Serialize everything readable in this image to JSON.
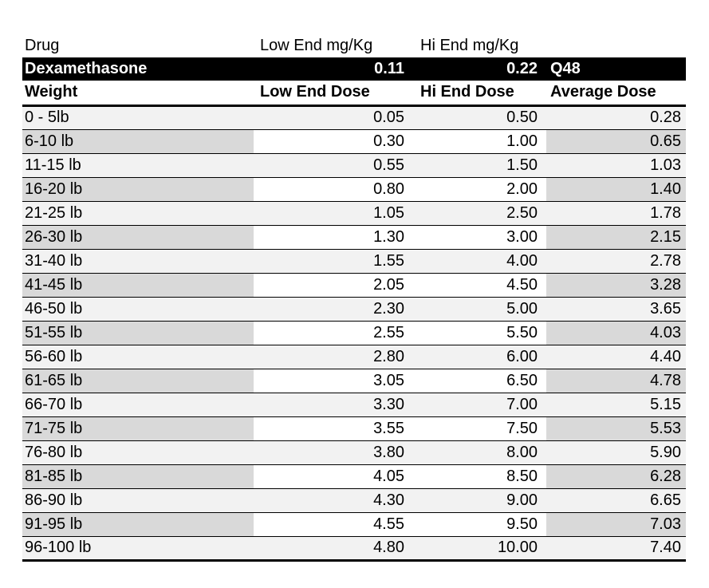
{
  "table": {
    "top_header": {
      "drug": "Drug",
      "low": "Low End mg/Kg",
      "hi": "Hi End mg/Kg"
    },
    "drug_row": {
      "name": "Dexamethasone",
      "low": "0.11",
      "hi": "0.22",
      "frequency": "Q48"
    },
    "dose_header": {
      "weight": "Weight",
      "low": "Low End Dose",
      "hi": "Hi End Dose",
      "avg": "Average Dose"
    },
    "rows": [
      {
        "weight": "0 - 5lb",
        "low": "0.05",
        "hi": "0.50",
        "avg": "0.28"
      },
      {
        "weight": "6-10 lb",
        "low": "0.30",
        "hi": "1.00",
        "avg": "0.65"
      },
      {
        "weight": "11-15 lb",
        "low": "0.55",
        "hi": "1.50",
        "avg": "1.03"
      },
      {
        "weight": "16-20 lb",
        "low": "0.80",
        "hi": "2.00",
        "avg": "1.40"
      },
      {
        "weight": "21-25 lb",
        "low": "1.05",
        "hi": "2.50",
        "avg": "1.78"
      },
      {
        "weight": "26-30 lb",
        "low": "1.30",
        "hi": "3.00",
        "avg": "2.15"
      },
      {
        "weight": "31-40 lb",
        "low": "1.55",
        "hi": "4.00",
        "avg": "2.78"
      },
      {
        "weight": "41-45 lb",
        "low": "2.05",
        "hi": "4.50",
        "avg": "3.28"
      },
      {
        "weight": "46-50 lb",
        "low": "2.30",
        "hi": "5.00",
        "avg": "3.65"
      },
      {
        "weight": "51-55 lb",
        "low": "2.55",
        "hi": "5.50",
        "avg": "4.03"
      },
      {
        "weight": "56-60 lb",
        "low": "2.80",
        "hi": "6.00",
        "avg": "4.40"
      },
      {
        "weight": "61-65 lb",
        "low": "3.05",
        "hi": "6.50",
        "avg": "4.78"
      },
      {
        "weight": "66-70 lb",
        "low": "3.30",
        "hi": "7.00",
        "avg": "5.15"
      },
      {
        "weight": "71-75 lb",
        "low": "3.55",
        "hi": "7.50",
        "avg": "5.53"
      },
      {
        "weight": "76-80 lb",
        "low": "3.80",
        "hi": "8.00",
        "avg": "5.90"
      },
      {
        "weight": "81-85 lb",
        "low": "4.05",
        "hi": "8.50",
        "avg": "6.28"
      },
      {
        "weight": "86-90 lb",
        "low": "4.30",
        "hi": "9.00",
        "avg": "6.65"
      },
      {
        "weight": "91-95 lb",
        "low": "4.55",
        "hi": "9.50",
        "avg": "7.03"
      },
      {
        "weight": "96-100 lb",
        "low": "4.80",
        "hi": "10.00",
        "avg": "7.40"
      }
    ]
  },
  "colors": {
    "band_light": "#f2f2f2",
    "band_dark": "#d9d9d9",
    "drug_bar_bg": "#000000",
    "drug_bar_text": "#ffffff",
    "border": "#000000"
  }
}
